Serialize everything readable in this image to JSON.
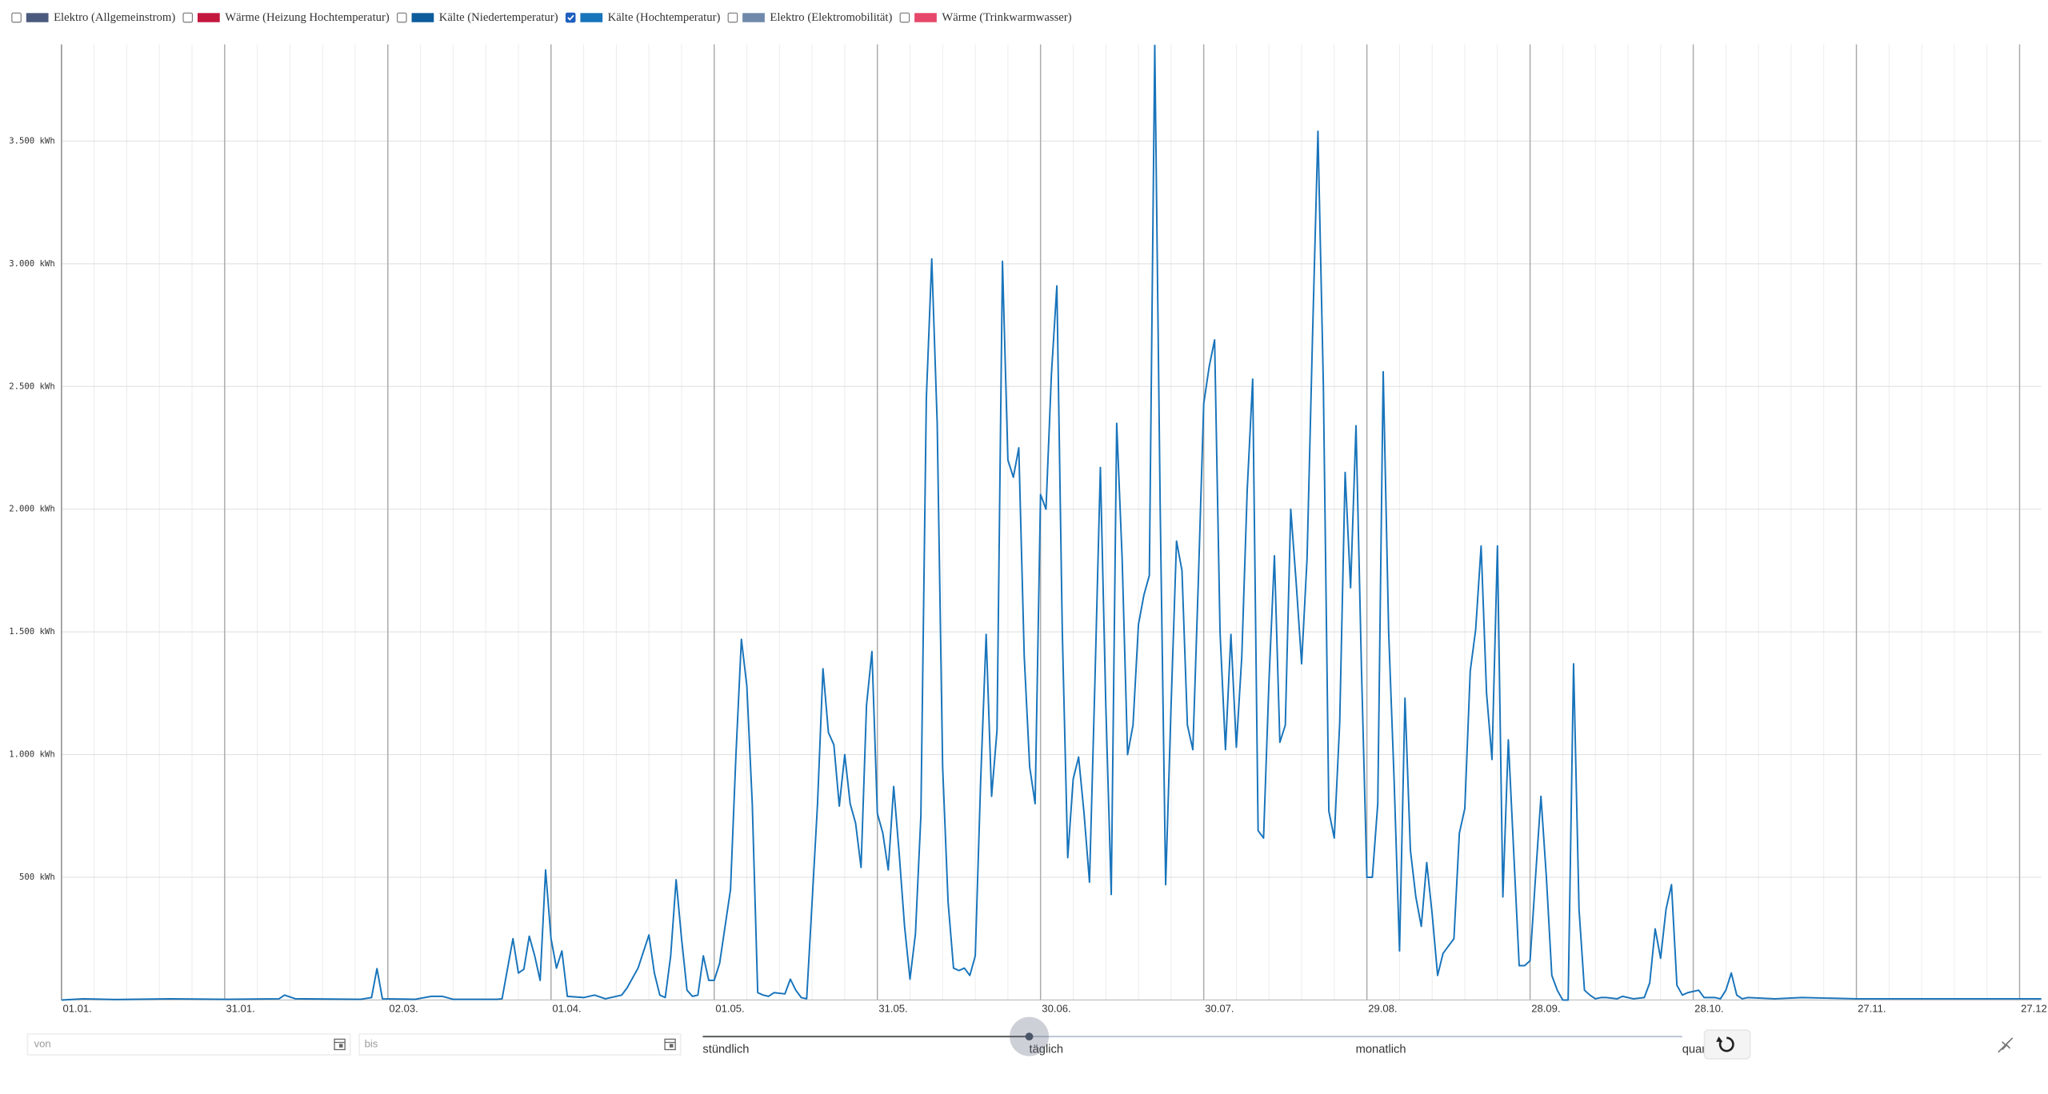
{
  "chart_data": {
    "type": "line",
    "series": [
      {
        "name": "Elektro (Allgemeinstrom)",
        "color": "#4b5a7c",
        "checked": false
      },
      {
        "name": "Wärme (Heizung Hochtemperatur)",
        "color": "#c4173e",
        "checked": false
      },
      {
        "name": "Kälte (Niedertemperatur)",
        "color": "#0d5c9c",
        "checked": false
      },
      {
        "name": "Kälte (Hochtemperatur)",
        "color": "#1874bb",
        "checked": true,
        "values": [
          0,
          5,
          2,
          5,
          3,
          5,
          20,
          5,
          3,
          10,
          128,
          5,
          3,
          15,
          15,
          3,
          3,
          5,
          250,
          110,
          125,
          260,
          180,
          80,
          530,
          250,
          130,
          200,
          15,
          10,
          20,
          5,
          20,
          50,
          130,
          265,
          110,
          20,
          10,
          180,
          490,
          250,
          40,
          15,
          20,
          180,
          80,
          80,
          150,
          300,
          450,
          1000,
          1470,
          1280,
          800,
          30,
          20,
          15,
          30,
          25,
          85,
          40,
          10,
          5,
          400,
          800,
          1350,
          1090,
          1040,
          790,
          1000,
          800,
          720,
          540,
          1200,
          1420,
          760,
          680,
          530,
          870,
          600,
          300,
          85,
          270,
          750,
          2450,
          3020,
          2350,
          950,
          400,
          130,
          120,
          130,
          100,
          180,
          900,
          1490,
          830,
          1100,
          3010,
          2200,
          2130,
          2250,
          1400,
          950,
          800,
          2060,
          2000,
          2550,
          2910,
          1500,
          580,
          900,
          990,
          760,
          480,
          1300,
          2170,
          1200,
          430,
          2350,
          1800,
          1000,
          1120,
          1530,
          1650,
          1730,
          3890,
          2000,
          470,
          1200,
          1870,
          1750,
          1120,
          1020,
          1700,
          2430,
          2580,
          2690,
          1500,
          1020,
          1490,
          1030,
          1400,
          2080,
          2530,
          690,
          660,
          1300,
          1810,
          1050,
          1120,
          2000,
          1700,
          1370,
          1800,
          2700,
          3540,
          2500,
          770,
          660,
          1130,
          2150,
          1680,
          2340,
          1350,
          500,
          500,
          800,
          2560,
          1500,
          900,
          200,
          1230,
          610,
          420,
          300,
          560,
          350,
          100,
          190,
          220,
          250,
          680,
          780,
          1340,
          1510,
          1850,
          1250,
          980,
          1850,
          420,
          1060,
          600,
          140,
          140,
          160,
          500,
          830,
          500,
          100,
          40,
          0,
          0,
          1370,
          370,
          40,
          20,
          5,
          10,
          10,
          5,
          15,
          5,
          10,
          70,
          290,
          170,
          370,
          470,
          60,
          20,
          30,
          40,
          10,
          10,
          5,
          40,
          110,
          20,
          5,
          10,
          5,
          10,
          5,
          5,
          5,
          5
        ]
      },
      {
        "name": "Elektro (Elektromobilität)",
        "color": "#7089aa",
        "checked": false
      },
      {
        "name": "Wärme (Trinkwarmwasser)",
        "color": "#e6476a",
        "checked": false
      }
    ],
    "x": [
      0,
      4,
      10,
      20,
      30,
      40,
      41,
      43,
      55,
      57,
      58,
      59,
      65,
      68,
      70,
      72,
      80,
      81,
      83,
      84,
      85,
      86,
      87,
      88,
      89,
      90,
      91,
      92,
      93,
      96,
      98,
      100,
      103,
      104,
      106,
      108,
      109,
      110,
      111,
      112,
      113,
      114,
      115,
      116,
      117,
      118,
      119,
      120,
      121,
      122,
      123,
      124,
      125,
      126,
      127,
      128,
      129,
      130,
      131,
      133,
      134,
      135,
      136,
      137,
      138,
      139,
      140,
      141,
      142,
      143,
      144,
      145,
      146,
      147,
      148,
      149,
      150,
      151,
      152,
      153,
      154,
      155,
      156,
      157,
      158,
      159,
      160,
      161,
      162,
      163,
      164,
      165,
      166,
      167,
      168,
      169,
      170,
      171,
      172,
      173,
      174,
      175,
      176,
      177,
      178,
      179,
      180,
      181,
      182,
      183,
      184,
      185,
      186,
      187,
      188,
      189,
      190,
      191,
      192,
      193,
      194,
      195,
      196,
      197,
      198,
      199,
      200,
      201,
      202,
      203,
      204,
      205,
      206,
      207,
      208,
      209,
      210,
      211,
      212,
      213,
      214,
      215,
      216,
      217,
      218,
      219,
      220,
      221,
      222,
      223,
      224,
      225,
      226,
      227,
      228,
      229,
      230,
      231,
      232,
      233,
      234,
      235,
      236,
      237,
      238,
      239,
      240,
      241,
      242,
      243,
      244,
      245,
      246,
      247,
      248,
      249,
      250,
      251,
      252,
      253,
      254,
      255,
      256,
      257,
      258,
      259,
      260,
      261,
      262,
      263,
      264,
      265,
      266,
      267,
      268,
      269,
      270,
      271,
      272,
      273,
      274,
      275,
      276,
      277,
      278,
      279,
      280,
      281,
      282,
      283,
      284,
      286,
      287,
      289,
      291,
      292,
      293,
      294,
      295,
      296,
      297,
      298,
      299,
      301,
      302,
      304,
      305,
      306,
      307,
      308,
      309,
      310,
      315,
      320,
      330,
      340,
      350,
      364
    ],
    "xlim": [
      0,
      364
    ],
    "xticks": [
      {
        "value": 0,
        "label": "01.01."
      },
      {
        "value": 30,
        "label": "31.01."
      },
      {
        "value": 60,
        "label": "02.03."
      },
      {
        "value": 90,
        "label": "01.04."
      },
      {
        "value": 120,
        "label": "01.05."
      },
      {
        "value": 150,
        "label": "31.05."
      },
      {
        "value": 180,
        "label": "30.06."
      },
      {
        "value": 210,
        "label": "30.07."
      },
      {
        "value": 240,
        "label": "29.08."
      },
      {
        "value": 270,
        "label": "28.09."
      },
      {
        "value": 300,
        "label": "28.10."
      },
      {
        "value": 330,
        "label": "27.11."
      },
      {
        "value": 360,
        "label": "27.12."
      }
    ],
    "ylim": [
      0,
      3894
    ],
    "yticks": [
      {
        "value": 500,
        "label": "500 kWh"
      },
      {
        "value": 1000,
        "label": "1.000 kWh"
      },
      {
        "value": 1500,
        "label": "1.500 kWh"
      },
      {
        "value": 2000,
        "label": "2.000 kWh"
      },
      {
        "value": 2500,
        "label": "2.500 kWh"
      },
      {
        "value": 3000,
        "label": "3.000 kWh"
      },
      {
        "value": 3500,
        "label": "3.500 kWh"
      }
    ],
    "grid": true
  },
  "controls": {
    "from_placeholder": "von",
    "to_placeholder": "bis",
    "resolution": {
      "options": [
        "stündlich",
        "täglich",
        "monatlich",
        "quar"
      ],
      "selected": 1
    }
  }
}
